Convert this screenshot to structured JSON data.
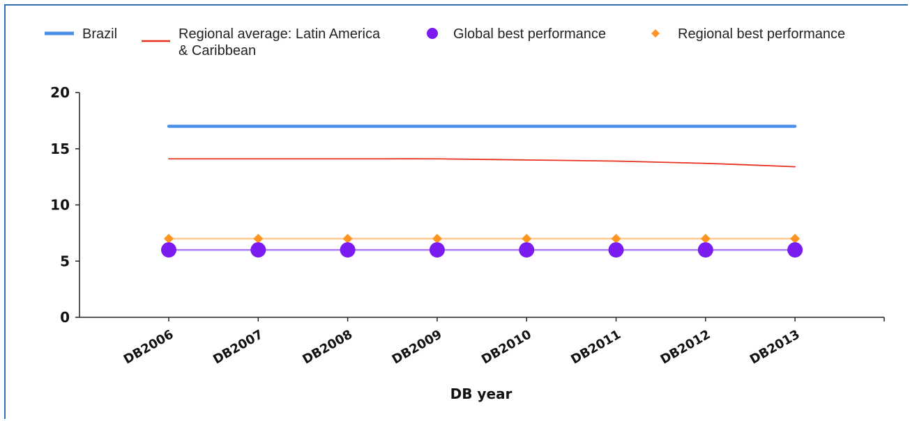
{
  "chart_data": {
    "type": "line",
    "title": "",
    "xlabel": "DB year",
    "ylabel": "",
    "ylim": [
      0,
      20
    ],
    "yticks": [
      0,
      5,
      10,
      15,
      20
    ],
    "grid": false,
    "legend_position": "top",
    "categories": [
      "DB2006",
      "DB2007",
      "DB2008",
      "DB2009",
      "DB2010",
      "DB2011",
      "DB2012",
      "DB2013"
    ],
    "series": [
      {
        "name": "Brazil",
        "color": "#4a90e8",
        "marker": "none",
        "values": [
          17,
          17,
          17,
          17,
          17,
          17,
          17,
          17
        ]
      },
      {
        "name": "Regional average: Latin America & Caribbean",
        "name_lines": [
          "Regional average: Latin America",
          "& Caribbean"
        ],
        "color": "#e8301c",
        "marker": "none",
        "values": [
          14.1,
          14.1,
          14.1,
          14.1,
          14.0,
          13.9,
          13.7,
          13.4
        ]
      },
      {
        "name": "Global best performance",
        "color": "#7a1cf0",
        "line_color": "#a97cf5",
        "marker": "circle",
        "values": [
          6,
          6,
          6,
          6,
          6,
          6,
          6,
          6
        ]
      },
      {
        "name": "Regional best performance",
        "color": "#ff9420",
        "line_color": "#ffc890",
        "marker": "diamond",
        "values": [
          7,
          7,
          7,
          7,
          7,
          7,
          7,
          7
        ]
      }
    ]
  }
}
